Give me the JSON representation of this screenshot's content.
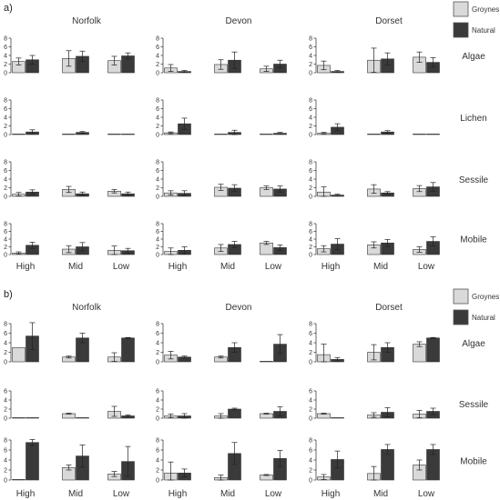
{
  "legend": {
    "items": [
      {
        "label": "Groynes",
        "color": "#d9d9d9"
      },
      {
        "label": "Natural",
        "color": "#3a3a3a"
      }
    ]
  },
  "chart_data": [
    {
      "type": "bar",
      "panel_label": "a)",
      "sites": [
        "Norfolk",
        "Devon",
        "Dorset"
      ],
      "zones": [
        "High",
        "Mid",
        "Low"
      ],
      "ylim": [
        0,
        8
      ],
      "yticks": [
        0,
        2,
        4,
        6,
        8
      ],
      "series_names": [
        "Groynes",
        "Natural"
      ],
      "rows": [
        {
          "label": "Algae",
          "values": [
            [
              [
                2.6,
                0.8,
                3.0,
                1.0
              ],
              [
                3.3,
                1.8,
                3.8,
                1.2
              ],
              [
                2.8,
                1.0,
                3.9,
                0.7
              ]
            ],
            [
              [
                1.1,
                0.8,
                0.3,
                0.2
              ],
              [
                1.9,
                1.1,
                2.9,
                1.9
              ],
              [
                0.9,
                0.6,
                2.0,
                0.9
              ]
            ],
            [
              [
                1.7,
                1.0,
                0.3,
                0.2
              ],
              [
                2.9,
                2.8,
                3.2,
                1.4
              ],
              [
                3.6,
                1.2,
                2.4,
                1.1
              ]
            ]
          ]
        },
        {
          "label": "Lichen",
          "values": [
            [
              [
                0.0,
                0.0,
                0.6,
                0.5
              ],
              [
                0.0,
                0.0,
                0.5,
                0.2
              ],
              [
                0.0,
                0.0,
                0.0,
                0.0
              ]
            ],
            [
              [
                0.4,
                0.2,
                2.5,
                1.3
              ],
              [
                0.0,
                0.0,
                0.5,
                0.5
              ],
              [
                0.0,
                0.0,
                0.3,
                0.2
              ]
            ],
            [
              [
                0.3,
                0.2,
                1.7,
                0.8
              ],
              [
                0.0,
                0.0,
                0.6,
                0.3
              ],
              [
                0.0,
                0.0,
                0.0,
                0.0
              ]
            ]
          ]
        },
        {
          "label": "Sessile",
          "values": [
            [
              [
                0.5,
                0.4,
                1.0,
                0.5
              ],
              [
                1.6,
                0.7,
                0.6,
                0.4
              ],
              [
                1.2,
                0.4,
                0.6,
                0.4
              ]
            ],
            [
              [
                0.8,
                0.5,
                0.7,
                0.6
              ],
              [
                2.1,
                0.7,
                1.9,
                0.8
              ],
              [
                2.0,
                0.4,
                1.7,
                0.7
              ]
            ],
            [
              [
                1.0,
                1.2,
                0.3,
                0.2
              ],
              [
                1.7,
                1.0,
                0.8,
                0.3
              ],
              [
                1.8,
                0.7,
                2.2,
                1.0
              ]
            ]
          ]
        },
        {
          "label": "Mobile",
          "values": [
            [
              [
                0.4,
                0.3,
                2.4,
                0.8
              ],
              [
                1.4,
                0.9,
                2.0,
                1.1
              ],
              [
                1.1,
                1.1,
                1.0,
                0.6
              ]
            ],
            [
              [
                0.8,
                0.9,
                1.1,
                0.9
              ],
              [
                1.7,
                0.9,
                2.6,
                0.8
              ],
              [
                3.0,
                0.4,
                1.8,
                0.7
              ]
            ],
            [
              [
                1.5,
                0.8,
                2.7,
                1.4
              ],
              [
                2.5,
                0.8,
                3.0,
                0.9
              ],
              [
                1.3,
                0.7,
                3.4,
                1.2
              ]
            ]
          ]
        }
      ]
    },
    {
      "type": "bar",
      "panel_label": "b)",
      "sites": [
        "Norfolk",
        "Devon",
        "Dorset"
      ],
      "zones": [
        "High",
        "Mid",
        "Low"
      ],
      "series_names": [
        "Groynes",
        "Natural"
      ],
      "rows": [
        {
          "label": "Algae",
          "ylim": [
            0,
            8
          ],
          "yticks": [
            0,
            2,
            4,
            6,
            8
          ],
          "values": [
            [
              [
                3.0,
                0.0,
                5.4,
                2.8
              ],
              [
                1.0,
                0.2,
                5.0,
                1.0
              ],
              [
                1.0,
                0.9,
                5.0,
                0.1
              ]
            ],
            [
              [
                1.4,
                0.8,
                1.0,
                0.2
              ],
              [
                1.0,
                0.2,
                3.0,
                1.0
              ],
              [
                0.1,
                0.0,
                3.7,
                2.0
              ]
            ],
            [
              [
                1.5,
                2.2,
                0.5,
                0.4
              ],
              [
                2.0,
                1.6,
                3.0,
                1.0
              ],
              [
                3.7,
                0.5,
                5.0,
                0.1
              ]
            ]
          ]
        },
        {
          "label": "Sessile",
          "ylim": [
            0,
            6
          ],
          "yticks": [
            0,
            2,
            4,
            6
          ],
          "values": [
            [
              [
                0.1,
                0.0,
                0.1,
                0.0
              ],
              [
                1.0,
                0.1,
                0.1,
                0.0
              ],
              [
                1.5,
                1.1,
                0.5,
                0.2
              ]
            ],
            [
              [
                0.5,
                0.4,
                0.5,
                0.5
              ],
              [
                0.5,
                0.5,
                2.0,
                0.2
              ],
              [
                1.0,
                0.1,
                1.5,
                1.0
              ]
            ],
            [
              [
                1.0,
                0.1,
                0.1,
                0.0
              ],
              [
                0.7,
                0.5,
                1.3,
                1.0
              ],
              [
                0.9,
                0.8,
                1.5,
                0.7
              ]
            ]
          ]
        },
        {
          "label": "Mobile",
          "ylim": [
            0,
            8
          ],
          "yticks": [
            0,
            2,
            4,
            6,
            8
          ],
          "values": [
            [
              [
                0.1,
                0.0,
                7.5,
                0.6
              ],
              [
                2.5,
                0.5,
                4.8,
                2.2
              ],
              [
                1.2,
                0.5,
                3.7,
                3.0
              ]
            ],
            [
              [
                1.4,
                2.2,
                1.4,
                0.8
              ],
              [
                0.5,
                0.5,
                5.3,
                2.2
              ],
              [
                1.0,
                0.1,
                4.3,
                1.6
              ]
            ],
            [
              [
                0.6,
                0.5,
                4.1,
                1.7
              ],
              [
                1.3,
                1.4,
                6.1,
                1.0
              ],
              [
                3.0,
                1.0,
                6.1,
                1.0
              ]
            ]
          ]
        }
      ]
    }
  ]
}
